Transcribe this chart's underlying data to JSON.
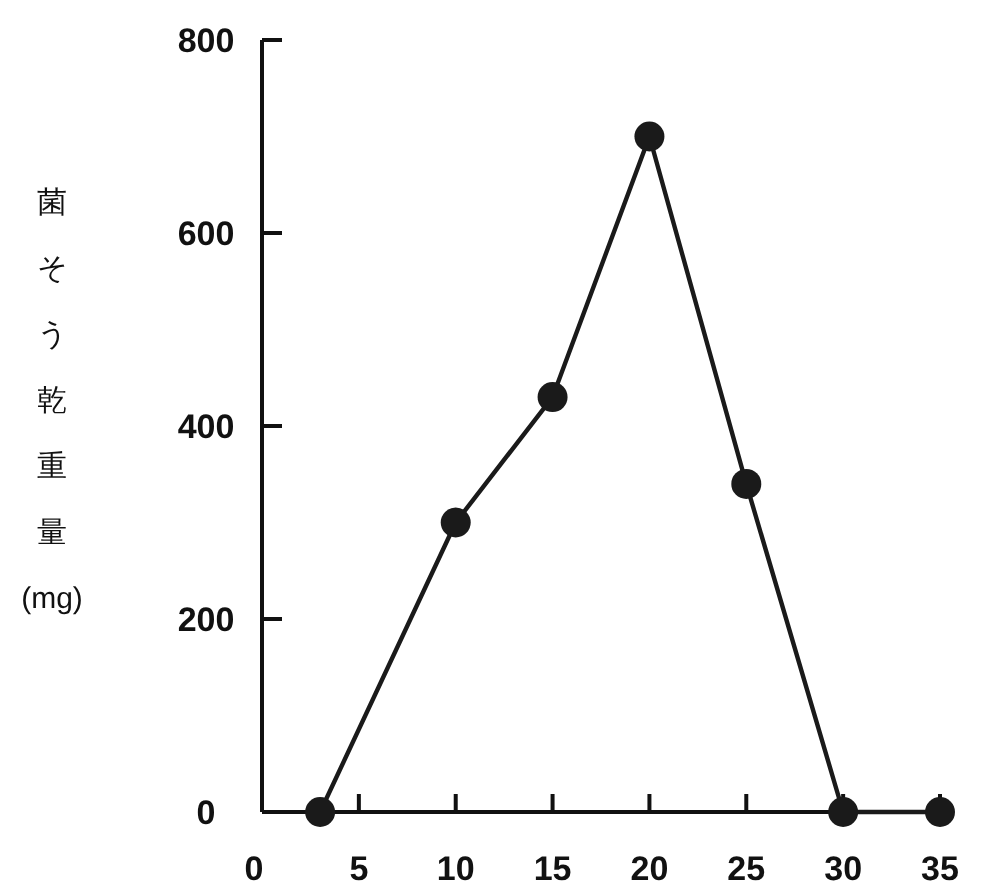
{
  "chart_data": {
    "type": "line",
    "ylabel": "菌そう乾重量(mg)",
    "x": [
      3,
      10,
      15,
      20,
      25,
      30,
      35
    ],
    "series": [
      {
        "color": "#1a1a1a",
        "values": [
          0,
          300,
          430,
          700,
          340,
          0,
          0
        ]
      }
    ],
    "xlim": [
      0,
      35
    ],
    "xticks": [
      0,
      5,
      10,
      15,
      20,
      25,
      30,
      35
    ],
    "ylim": [
      0,
      800
    ],
    "yticks": [
      0,
      200,
      400,
      600,
      800
    ],
    "marker": "circle",
    "line_style": "solid",
    "grid": false
  }
}
